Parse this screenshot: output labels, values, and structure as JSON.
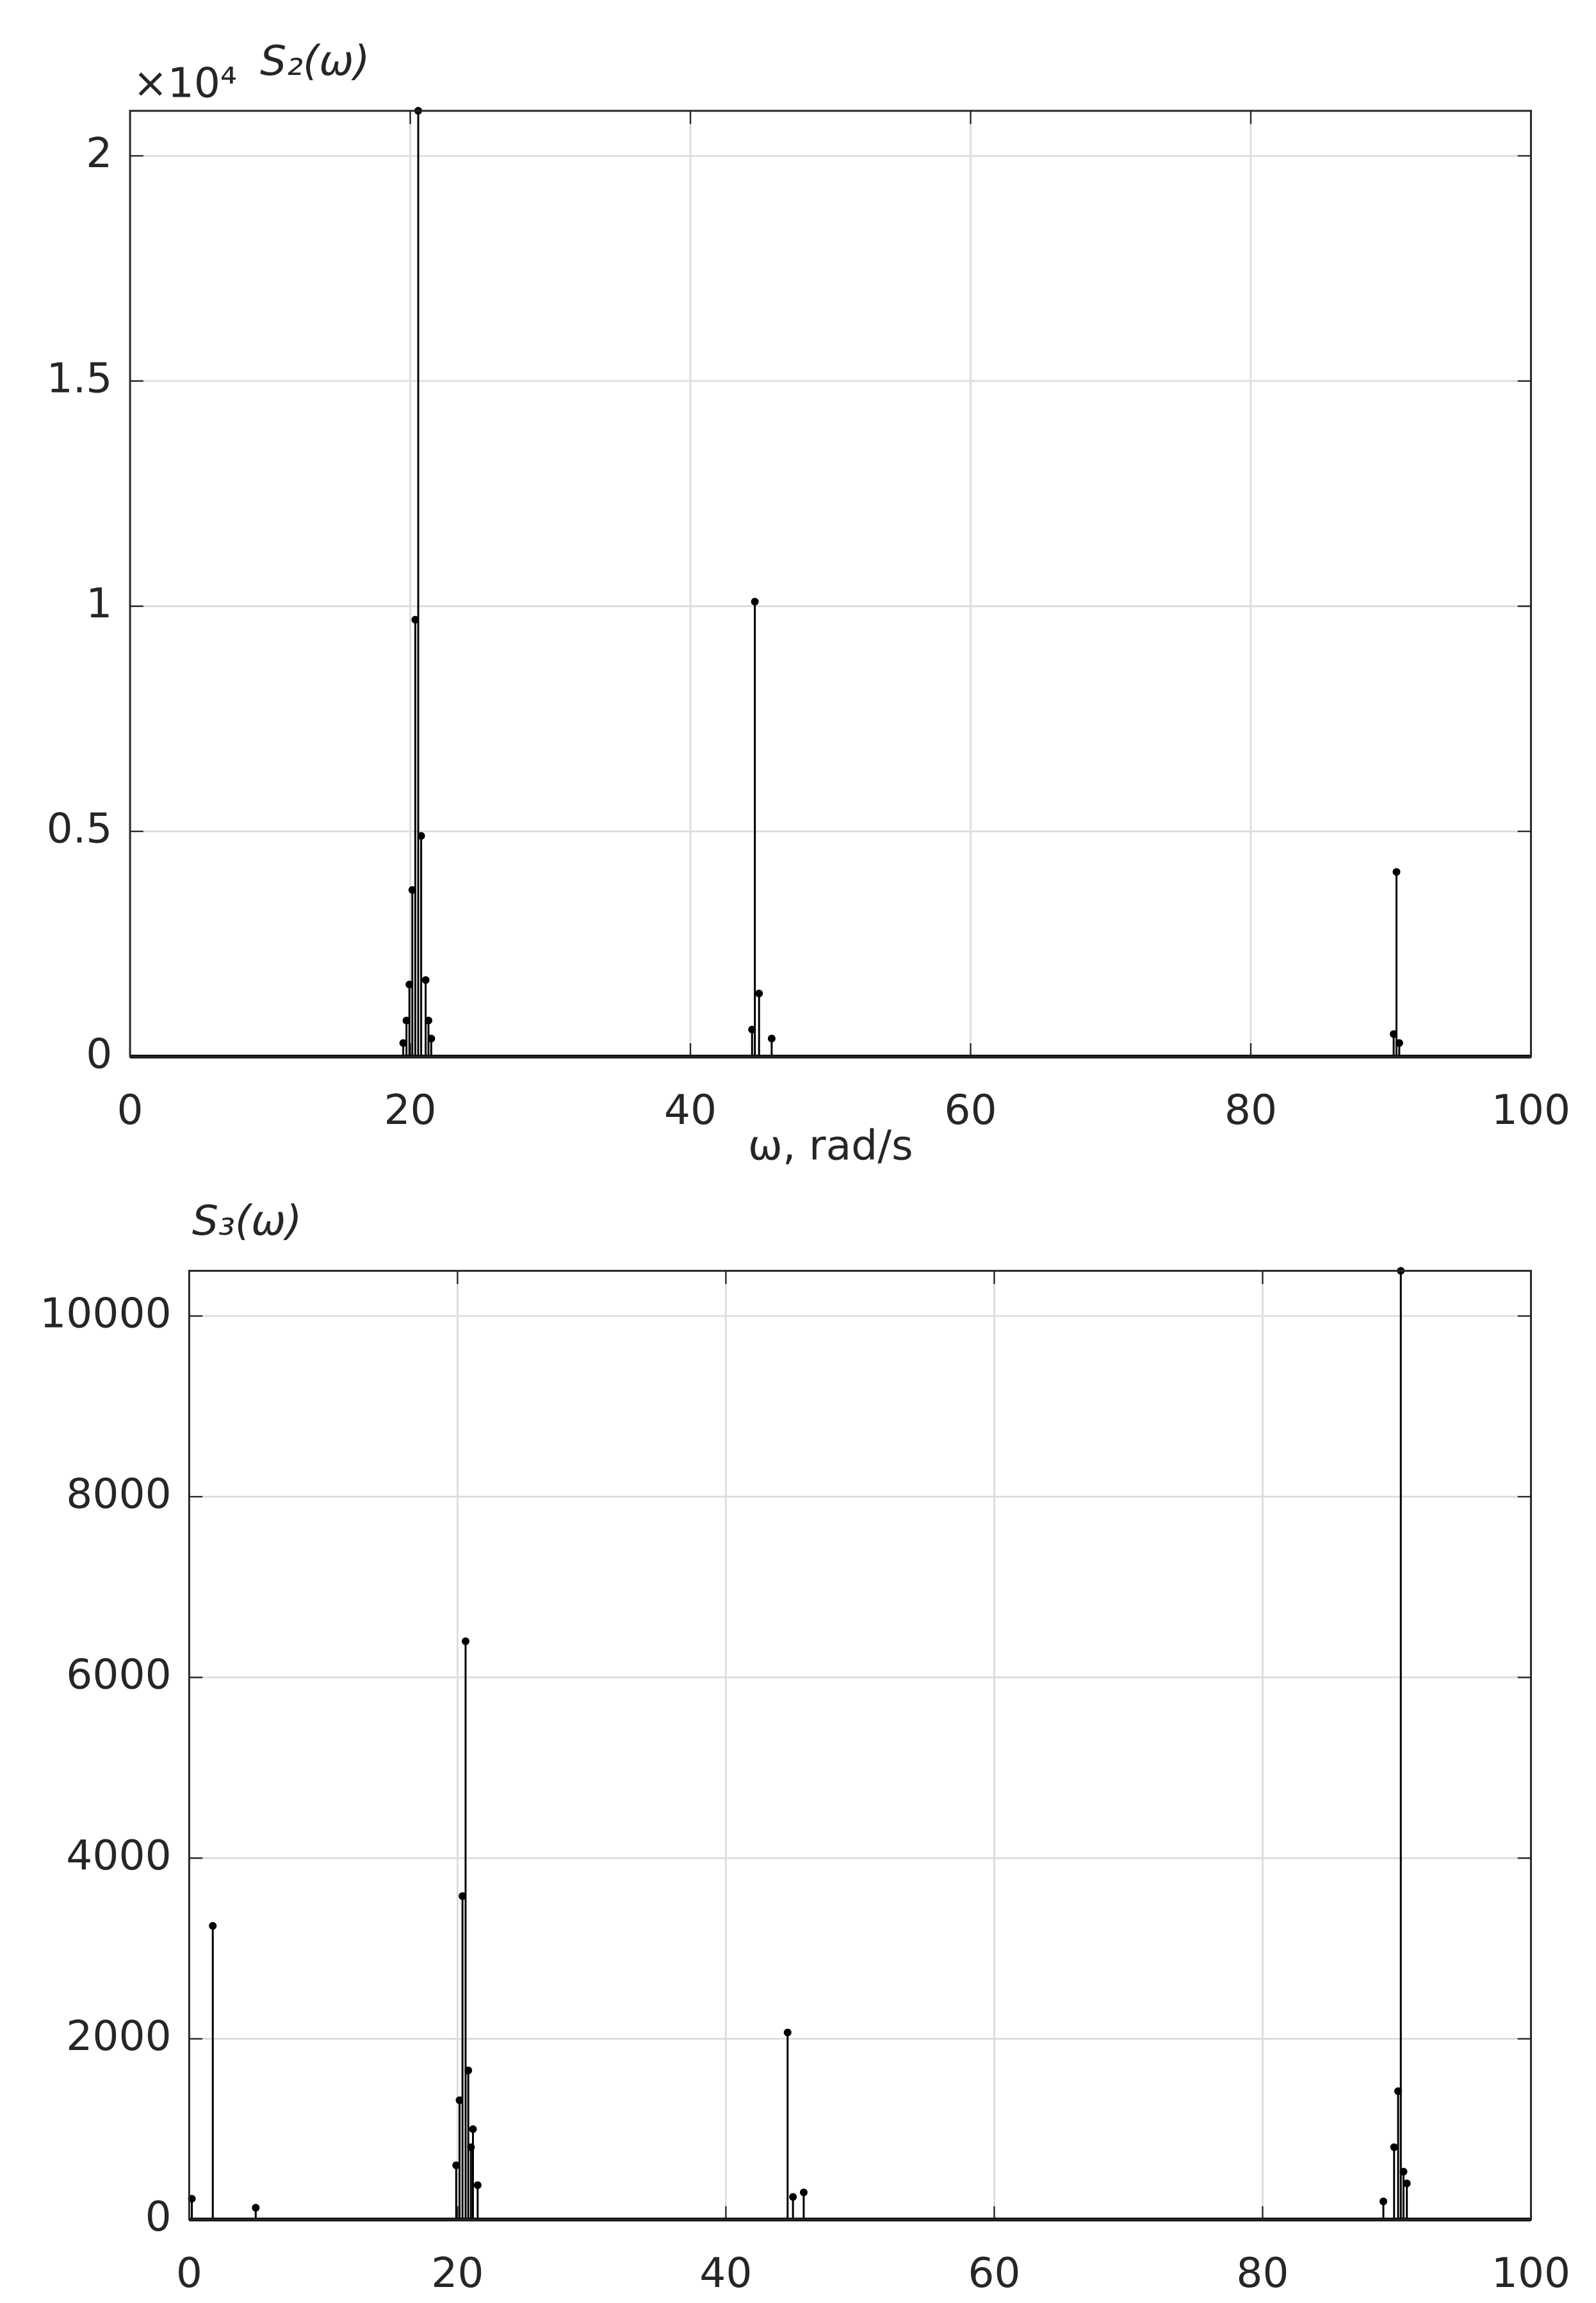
{
  "chart_data": [
    {
      "type": "stem",
      "title": "S₂(ω)",
      "multiplier": "×10⁴",
      "xlabel": "ω, rad/s",
      "color": "#000000",
      "grid": true,
      "x": [
        19.5,
        19.73,
        19.94,
        20.15,
        20.36,
        20.57,
        20.78,
        21.1,
        21.3,
        21.5,
        44.4,
        44.6,
        44.9,
        45.8,
        90.2,
        90.4,
        90.6
      ],
      "values": [
        0.03,
        0.08,
        0.16,
        0.37,
        0.97,
        2.1,
        0.49,
        0.17,
        0.08,
        0.04,
        0.06,
        1.01,
        0.14,
        0.04,
        0.05,
        0.41,
        0.03
      ],
      "xlim": [
        0,
        100
      ],
      "xticks": [
        0,
        20,
        40,
        60,
        80,
        100
      ],
      "ylim": [
        0,
        2.1
      ],
      "yticks": [
        0,
        0.5,
        1,
        1.5,
        2
      ]
    },
    {
      "type": "stem",
      "title": "S₃(ω)",
      "color": "#000000",
      "grid": true,
      "x": [
        0.2,
        1.76,
        4.96,
        19.9,
        20.15,
        20.37,
        20.6,
        20.8,
        21.0,
        21.15,
        21.5,
        44.6,
        45.0,
        45.8,
        89.0,
        89.8,
        90.1,
        90.3,
        90.5,
        90.75
      ],
      "values": [
        230,
        3250,
        130,
        600,
        1320,
        3580,
        6400,
        1650,
        800,
        1000,
        380,
        2070,
        250,
        300,
        200,
        800,
        1420,
        10500,
        530,
        400
      ],
      "xlim": [
        0,
        100
      ],
      "xticks": [
        0,
        20,
        40,
        60,
        80,
        100
      ],
      "ylim": [
        0,
        10500
      ],
      "yticks": [
        0,
        2000,
        4000,
        6000,
        8000,
        10000
      ]
    }
  ]
}
